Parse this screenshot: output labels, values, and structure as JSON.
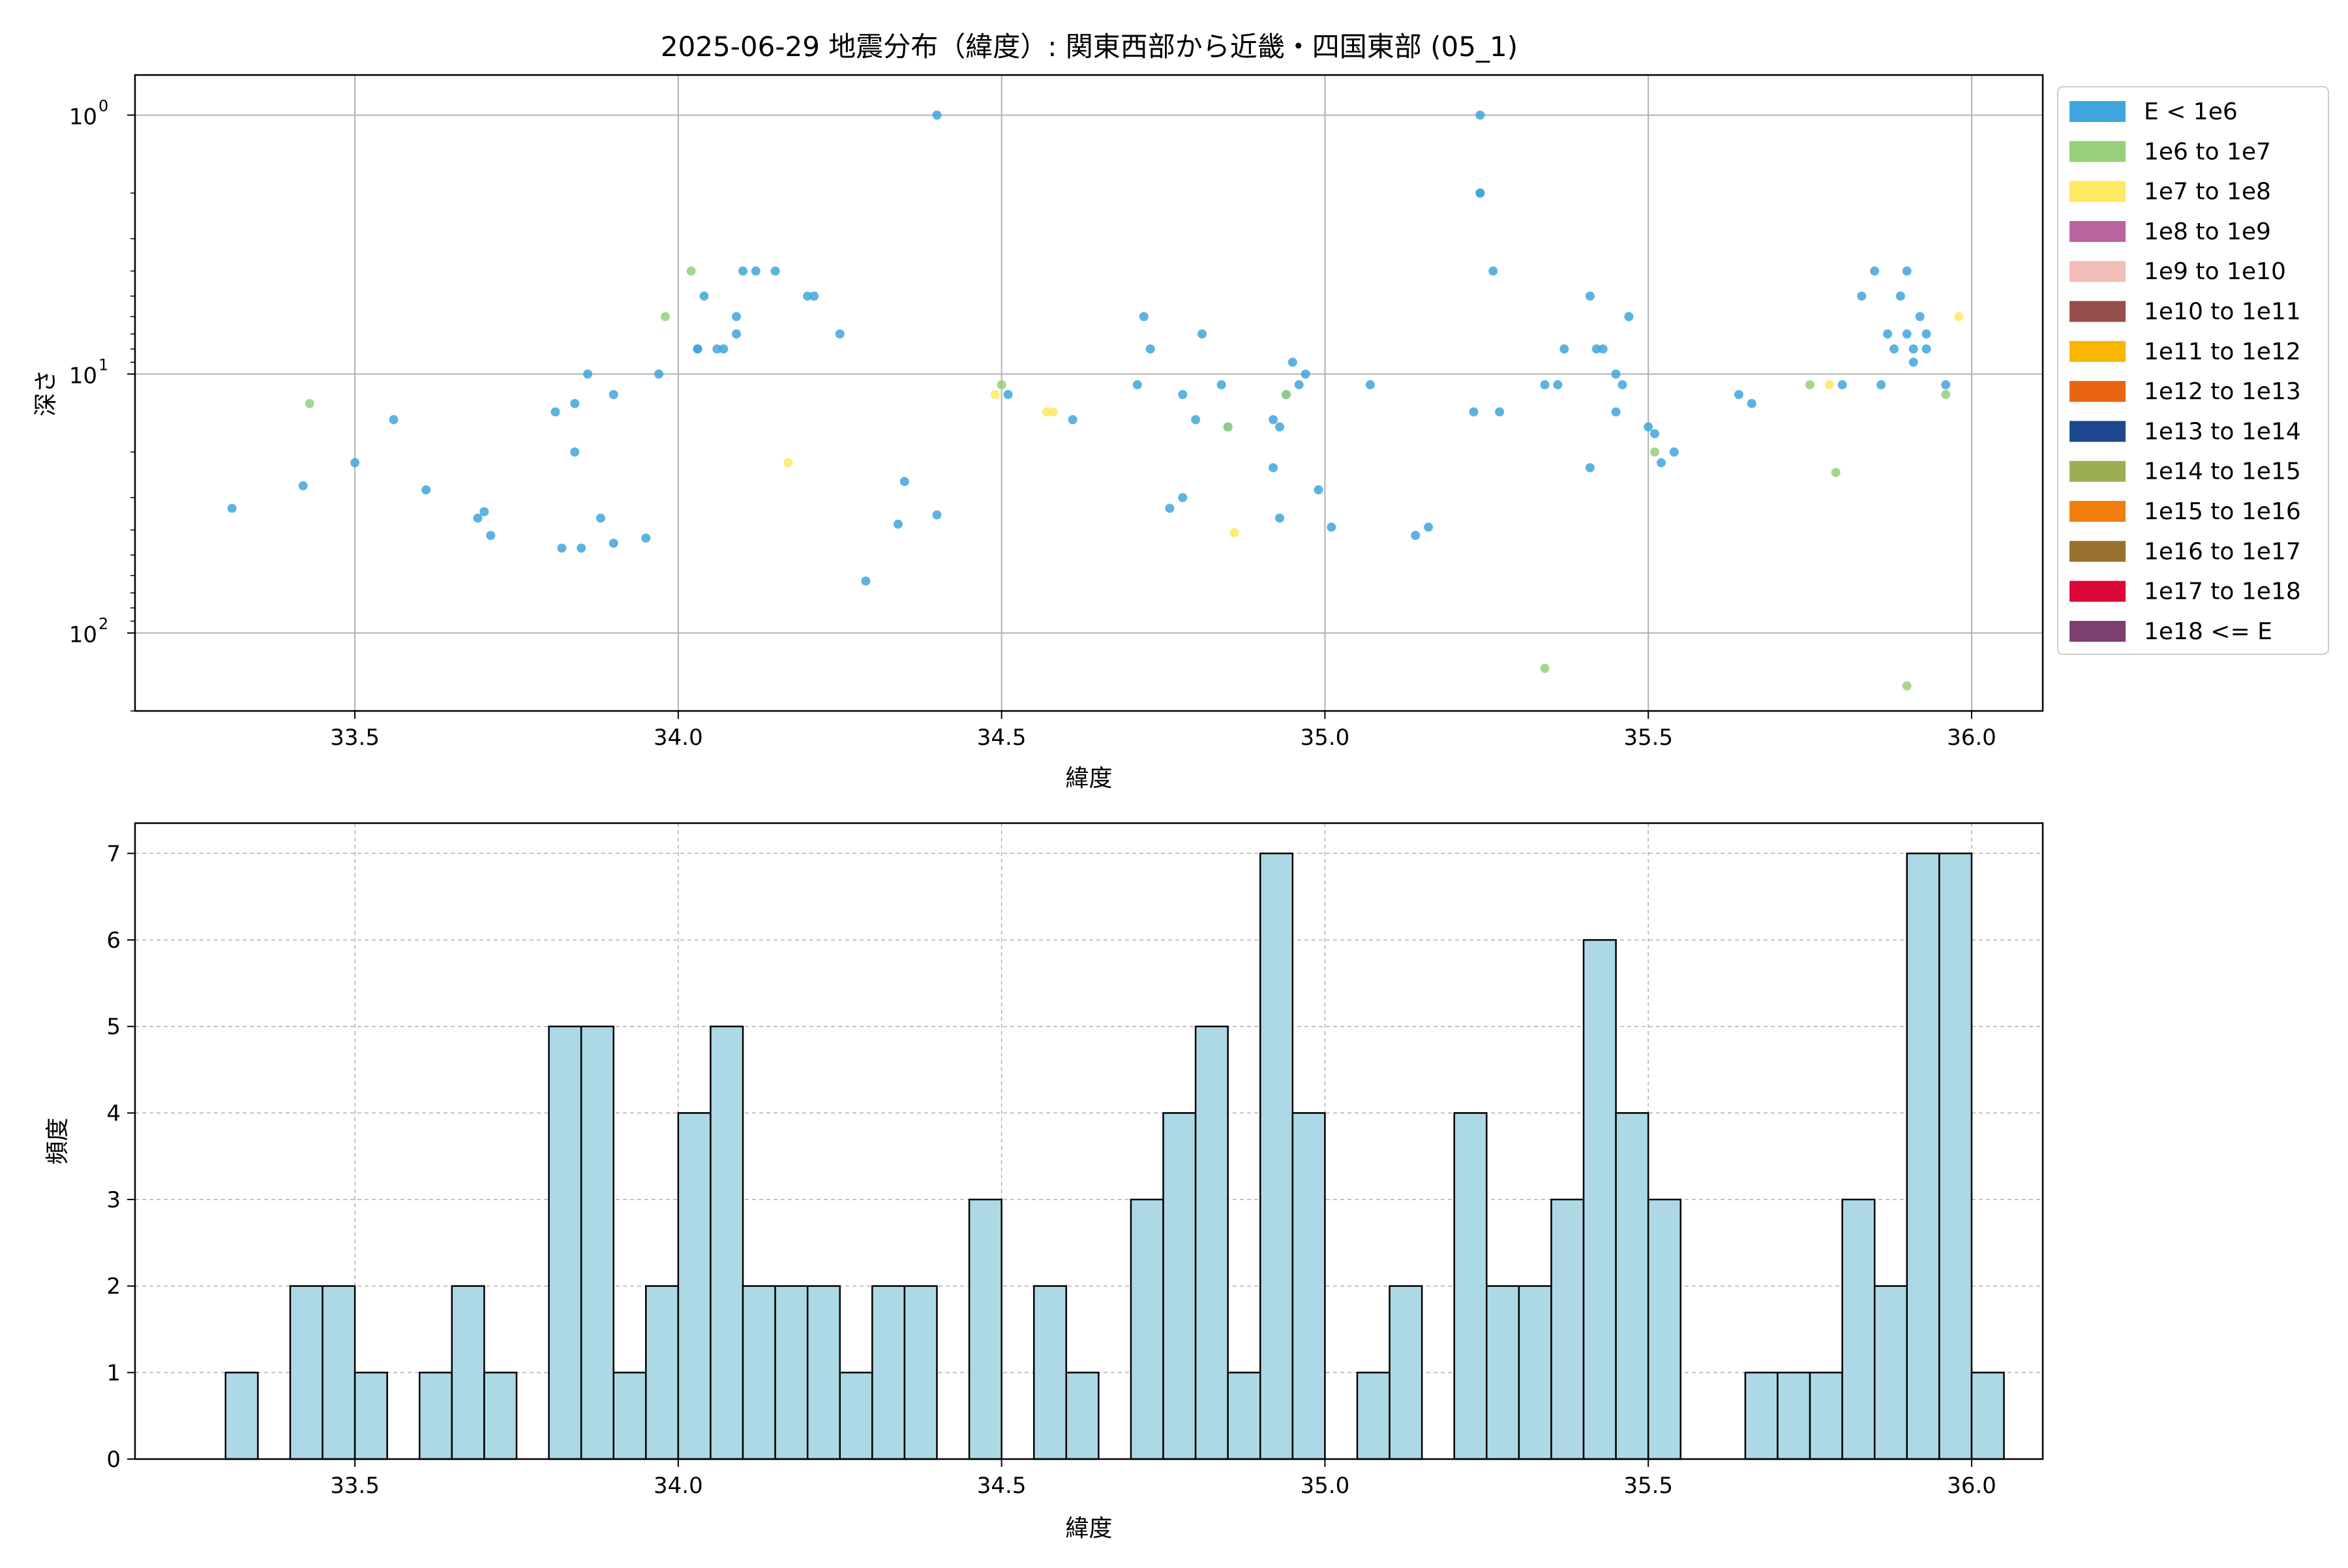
{
  "title": "2025-06-29 地震分布（緯度）: 関東西部から近畿・四国東部 (05_1)",
  "chart_data": [
    {
      "type": "scatter",
      "xlabel": "緯度",
      "ylabel": "深さ",
      "xlim": [
        33.16,
        36.11
      ],
      "ylim": [
        200,
        0.7
      ],
      "y_scale": "log",
      "y_inverted": true,
      "grid": true,
      "x_ticks": [
        33.5,
        34.0,
        34.5,
        35.0,
        35.5,
        36.0
      ],
      "x_tick_labels": [
        "33.5",
        "34.0",
        "34.5",
        "35.0",
        "35.5",
        "36.0"
      ],
      "y_ticks": [
        1,
        10,
        100
      ],
      "y_tick_labels": [
        "10",
        "10",
        "10"
      ],
      "y_tick_exponents": [
        "0",
        "1",
        "2"
      ],
      "legend_position": "outside-right",
      "legend": [
        {
          "label": "E < 1e6",
          "color": "#3fa6dd"
        },
        {
          "label": "1e6 to 1e7",
          "color": "#97cf7a"
        },
        {
          "label": "1e7 to 1e8",
          "color": "#fde962"
        },
        {
          "label": "1e8 to 1e9",
          "color": "#b7649f"
        },
        {
          "label": "1e9 to 1e10",
          "color": "#f3bdb8"
        },
        {
          "label": "1e10 to 1e11",
          "color": "#964e4b"
        },
        {
          "label": "1e11 to 1e12",
          "color": "#f7b600"
        },
        {
          "label": "1e12 to 1e13",
          "color": "#ea6510"
        },
        {
          "label": "1e13 to 1e14",
          "color": "#1d4890"
        },
        {
          "label": "1e14 to 1e15",
          "color": "#9cae52"
        },
        {
          "label": "1e15 to 1e16",
          "color": "#f07f0b"
        },
        {
          "label": "1e16 to 1e17",
          "color": "#98712e"
        },
        {
          "label": "1e17 to 1e18",
          "color": "#db0838"
        },
        {
          "label": "1e18 <= E",
          "color": "#7c3f70"
        }
      ],
      "series": [
        {
          "name": "E < 1e6",
          "color": "#3fa6dd",
          "points": [
            [
              33.31,
              33
            ],
            [
              33.42,
              27
            ],
            [
              33.5,
              22
            ],
            [
              33.56,
              15
            ],
            [
              33.61,
              28
            ],
            [
              33.69,
              36
            ],
            [
              33.7,
              34
            ],
            [
              33.71,
              42
            ],
            [
              33.81,
              14
            ],
            [
              33.82,
              47
            ],
            [
              33.84,
              13
            ],
            [
              33.84,
              20
            ],
            [
              33.85,
              47
            ],
            [
              33.86,
              10
            ],
            [
              33.88,
              36
            ],
            [
              33.9,
              45
            ],
            [
              33.9,
              12
            ],
            [
              33.95,
              43
            ],
            [
              33.97,
              10
            ],
            [
              34.03,
              8
            ],
            [
              34.03,
              8
            ],
            [
              34.04,
              5
            ],
            [
              34.06,
              8
            ],
            [
              34.07,
              8
            ],
            [
              34.09,
              7
            ],
            [
              34.09,
              6
            ],
            [
              34.1,
              4
            ],
            [
              34.12,
              4
            ],
            [
              34.15,
              4
            ],
            [
              34.2,
              5
            ],
            [
              34.21,
              5
            ],
            [
              34.25,
              7
            ],
            [
              34.29,
              63
            ],
            [
              34.34,
              38
            ],
            [
              34.35,
              26
            ],
            [
              34.4,
              35
            ],
            [
              34.4,
              1
            ],
            [
              34.51,
              12
            ],
            [
              34.61,
              15
            ],
            [
              34.71,
              11
            ],
            [
              34.72,
              6
            ],
            [
              34.73,
              8
            ],
            [
              34.76,
              33
            ],
            [
              34.78,
              30
            ],
            [
              34.78,
              12
            ],
            [
              34.8,
              15
            ],
            [
              34.81,
              7
            ],
            [
              34.84,
              11
            ],
            [
              34.85,
              16
            ],
            [
              34.92,
              15
            ],
            [
              34.92,
              23
            ],
            [
              34.93,
              36
            ],
            [
              34.93,
              16
            ],
            [
              34.94,
              12
            ],
            [
              34.95,
              9
            ],
            [
              34.96,
              11
            ],
            [
              34.97,
              10
            ],
            [
              34.99,
              28
            ],
            [
              35.01,
              39
            ],
            [
              35.07,
              11
            ],
            [
              35.14,
              42
            ],
            [
              35.16,
              39
            ],
            [
              35.23,
              14
            ],
            [
              35.24,
              1
            ],
            [
              35.24,
              2
            ],
            [
              35.24,
              2
            ],
            [
              35.26,
              4
            ],
            [
              35.27,
              14
            ],
            [
              35.34,
              11
            ],
            [
              35.36,
              11
            ],
            [
              35.37,
              8
            ],
            [
              35.41,
              5
            ],
            [
              35.41,
              23
            ],
            [
              35.42,
              8
            ],
            [
              35.43,
              8
            ],
            [
              35.45,
              14
            ],
            [
              35.45,
              10
            ],
            [
              35.46,
              11
            ],
            [
              35.47,
              6
            ],
            [
              35.5,
              16
            ],
            [
              35.51,
              17
            ],
            [
              35.52,
              22
            ],
            [
              35.54,
              20
            ],
            [
              35.64,
              12
            ],
            [
              35.66,
              13
            ],
            [
              35.8,
              11
            ],
            [
              35.83,
              5
            ],
            [
              35.85,
              4
            ],
            [
              35.86,
              11
            ],
            [
              35.87,
              7
            ],
            [
              35.88,
              8
            ],
            [
              35.89,
              5
            ],
            [
              35.9,
              4
            ],
            [
              35.9,
              7
            ],
            [
              35.91,
              8
            ],
            [
              35.91,
              9
            ],
            [
              35.92,
              6
            ],
            [
              35.93,
              7
            ],
            [
              35.93,
              8
            ],
            [
              35.96,
              11
            ]
          ]
        },
        {
          "name": "1e6 to 1e7",
          "color": "#97cf7a",
          "points": [
            [
              33.43,
              13
            ],
            [
              33.98,
              6
            ],
            [
              34.02,
              4
            ],
            [
              34.5,
              11
            ],
            [
              34.85,
              16
            ],
            [
              34.94,
              12
            ],
            [
              35.34,
              137
            ],
            [
              35.51,
              20
            ],
            [
              35.75,
              11
            ],
            [
              35.79,
              24
            ],
            [
              35.9,
              160
            ],
            [
              35.96,
              12
            ]
          ]
        },
        {
          "name": "1e7 to 1e8",
          "color": "#fde962",
          "points": [
            [
              34.17,
              22
            ],
            [
              34.49,
              12
            ],
            [
              34.57,
              14
            ],
            [
              34.58,
              14
            ],
            [
              34.86,
              41
            ],
            [
              35.78,
              11
            ],
            [
              35.98,
              6
            ]
          ]
        }
      ]
    },
    {
      "type": "bar",
      "xlabel": "緯度",
      "ylabel": "頻度",
      "xlim": [
        33.16,
        36.11
      ],
      "ylim": [
        0,
        7.35
      ],
      "grid": true,
      "x_ticks": [
        33.5,
        34.0,
        34.5,
        35.0,
        35.5,
        36.0
      ],
      "x_tick_labels": [
        "33.5",
        "34.0",
        "34.5",
        "35.0",
        "35.5",
        "36.0"
      ],
      "y_ticks": [
        0,
        1,
        2,
        3,
        4,
        5,
        6,
        7
      ],
      "y_tick_labels": [
        "0",
        "1",
        "2",
        "3",
        "4",
        "5",
        "6",
        "7"
      ],
      "color": "#add8e6",
      "edge_color": "#000000",
      "bin_start": 33.3,
      "bin_width": 0.05,
      "values": [
        1,
        0,
        2,
        2,
        1,
        0,
        1,
        2,
        1,
        0,
        5,
        5,
        1,
        2,
        4,
        5,
        2,
        2,
        2,
        1,
        2,
        2,
        0,
        3,
        0,
        2,
        1,
        0,
        3,
        4,
        5,
        1,
        7,
        4,
        0,
        1,
        2,
        0,
        4,
        2,
        2,
        3,
        6,
        4,
        3,
        0,
        0,
        1,
        1,
        1,
        3,
        2,
        7,
        7,
        1
      ]
    }
  ]
}
